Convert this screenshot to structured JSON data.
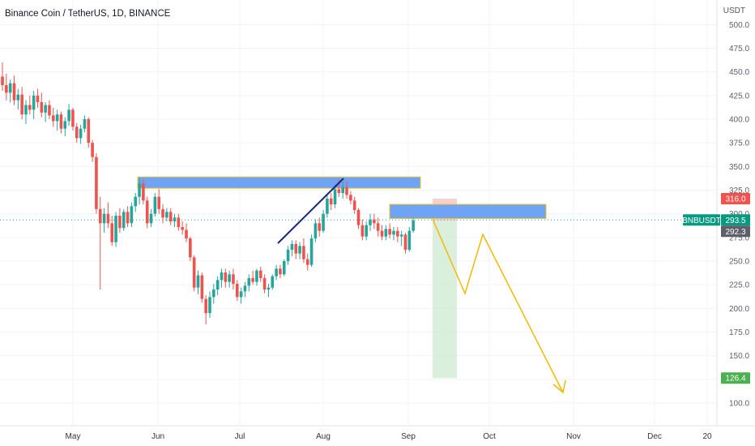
{
  "header": {
    "title": "Binance Coin / TetherUS, 1D, BINANCE",
    "currency": "USDT"
  },
  "colors": {
    "up": "#26a69a",
    "down": "#ef5350",
    "zone": "#6ea3f5",
    "zone_border": "#f5c518",
    "projection": "#f5b800",
    "trendline": "#1a237e",
    "target_fill": "#cfe9d2",
    "stop_fill": "#f8c8c8",
    "current_price_line": "#26a69a"
  },
  "chart_data": {
    "type": "candlestick",
    "symbol": "BNBUSDT",
    "interval": "1D",
    "ylim": [
      90,
      500
    ],
    "y_ticks": [
      "100.0",
      "125.0",
      "150.0",
      "175.0",
      "200.0",
      "225.0",
      "250.0",
      "275.0",
      "300.0",
      "325.0",
      "350.0",
      "375.0",
      "400.0",
      "425.0",
      "450.0",
      "475.0",
      "500.0"
    ],
    "x_ticks": [
      "May",
      "Jun",
      "Jul",
      "Aug",
      "Sep",
      "Oct",
      "Nov",
      "Dec",
      "20"
    ],
    "price_badges": {
      "symbol_label": "BNBUSDT",
      "last_price": "293.5",
      "stop_price": "316.0",
      "entry_price": "292.3",
      "target_price": "126.4"
    },
    "candles": [
      {
        "o": 445,
        "h": 460,
        "l": 430,
        "c": 436
      },
      {
        "o": 436,
        "h": 448,
        "l": 420,
        "c": 428
      },
      {
        "o": 428,
        "h": 442,
        "l": 418,
        "c": 438
      },
      {
        "o": 438,
        "h": 446,
        "l": 415,
        "c": 420
      },
      {
        "o": 420,
        "h": 432,
        "l": 410,
        "c": 426
      },
      {
        "o": 426,
        "h": 434,
        "l": 400,
        "c": 405
      },
      {
        "o": 405,
        "h": 420,
        "l": 395,
        "c": 415
      },
      {
        "o": 415,
        "h": 425,
        "l": 405,
        "c": 410
      },
      {
        "o": 410,
        "h": 430,
        "l": 400,
        "c": 425
      },
      {
        "o": 425,
        "h": 432,
        "l": 412,
        "c": 418
      },
      {
        "o": 418,
        "h": 428,
        "l": 402,
        "c": 407
      },
      {
        "o": 407,
        "h": 418,
        "l": 397,
        "c": 415
      },
      {
        "o": 415,
        "h": 420,
        "l": 400,
        "c": 404
      },
      {
        "o": 404,
        "h": 412,
        "l": 392,
        "c": 398
      },
      {
        "o": 398,
        "h": 410,
        "l": 388,
        "c": 405
      },
      {
        "o": 405,
        "h": 408,
        "l": 385,
        "c": 390
      },
      {
        "o": 390,
        "h": 402,
        "l": 382,
        "c": 398
      },
      {
        "o": 398,
        "h": 416,
        "l": 393,
        "c": 410
      },
      {
        "o": 410,
        "h": 412,
        "l": 388,
        "c": 392
      },
      {
        "o": 392,
        "h": 396,
        "l": 375,
        "c": 380
      },
      {
        "o": 380,
        "h": 394,
        "l": 374,
        "c": 390
      },
      {
        "o": 390,
        "h": 404,
        "l": 386,
        "c": 400
      },
      {
        "o": 400,
        "h": 402,
        "l": 370,
        "c": 375
      },
      {
        "o": 375,
        "h": 378,
        "l": 355,
        "c": 360
      },
      {
        "o": 360,
        "h": 364,
        "l": 300,
        "c": 305
      },
      {
        "o": 305,
        "h": 318,
        "l": 220,
        "c": 290
      },
      {
        "o": 290,
        "h": 306,
        "l": 280,
        "c": 300
      },
      {
        "o": 300,
        "h": 312,
        "l": 285,
        "c": 290
      },
      {
        "o": 290,
        "h": 298,
        "l": 266,
        "c": 270
      },
      {
        "o": 270,
        "h": 302,
        "l": 265,
        "c": 298
      },
      {
        "o": 298,
        "h": 306,
        "l": 280,
        "c": 285
      },
      {
        "o": 285,
        "h": 305,
        "l": 282,
        "c": 302
      },
      {
        "o": 302,
        "h": 308,
        "l": 286,
        "c": 290
      },
      {
        "o": 290,
        "h": 312,
        "l": 286,
        "c": 308
      },
      {
        "o": 308,
        "h": 322,
        "l": 302,
        "c": 318
      },
      {
        "o": 318,
        "h": 338,
        "l": 310,
        "c": 332
      },
      {
        "o": 332,
        "h": 336,
        "l": 310,
        "c": 314
      },
      {
        "o": 314,
        "h": 318,
        "l": 285,
        "c": 290
      },
      {
        "o": 290,
        "h": 305,
        "l": 286,
        "c": 300
      },
      {
        "o": 300,
        "h": 322,
        "l": 297,
        "c": 318
      },
      {
        "o": 318,
        "h": 326,
        "l": 300,
        "c": 305
      },
      {
        "o": 305,
        "h": 310,
        "l": 290,
        "c": 296
      },
      {
        "o": 296,
        "h": 306,
        "l": 292,
        "c": 302
      },
      {
        "o": 302,
        "h": 306,
        "l": 288,
        "c": 292
      },
      {
        "o": 292,
        "h": 300,
        "l": 286,
        "c": 296
      },
      {
        "o": 296,
        "h": 300,
        "l": 282,
        "c": 286
      },
      {
        "o": 286,
        "h": 292,
        "l": 278,
        "c": 283
      },
      {
        "o": 283,
        "h": 290,
        "l": 270,
        "c": 274
      },
      {
        "o": 274,
        "h": 276,
        "l": 250,
        "c": 254
      },
      {
        "o": 254,
        "h": 256,
        "l": 218,
        "c": 222
      },
      {
        "o": 222,
        "h": 240,
        "l": 215,
        "c": 235
      },
      {
        "o": 235,
        "h": 238,
        "l": 206,
        "c": 210
      },
      {
        "o": 210,
        "h": 214,
        "l": 183,
        "c": 195
      },
      {
        "o": 195,
        "h": 218,
        "l": 190,
        "c": 212
      },
      {
        "o": 212,
        "h": 226,
        "l": 205,
        "c": 220
      },
      {
        "o": 220,
        "h": 234,
        "l": 214,
        "c": 230
      },
      {
        "o": 230,
        "h": 242,
        "l": 222,
        "c": 238
      },
      {
        "o": 238,
        "h": 242,
        "l": 222,
        "c": 228
      },
      {
        "o": 228,
        "h": 240,
        "l": 222,
        "c": 236
      },
      {
        "o": 236,
        "h": 242,
        "l": 220,
        "c": 226
      },
      {
        "o": 226,
        "h": 230,
        "l": 208,
        "c": 212
      },
      {
        "o": 212,
        "h": 222,
        "l": 205,
        "c": 218
      },
      {
        "o": 218,
        "h": 228,
        "l": 212,
        "c": 224
      },
      {
        "o": 224,
        "h": 236,
        "l": 218,
        "c": 232
      },
      {
        "o": 232,
        "h": 240,
        "l": 225,
        "c": 228
      },
      {
        "o": 228,
        "h": 242,
        "l": 224,
        "c": 240
      },
      {
        "o": 240,
        "h": 244,
        "l": 228,
        "c": 232
      },
      {
        "o": 232,
        "h": 236,
        "l": 216,
        "c": 220
      },
      {
        "o": 220,
        "h": 226,
        "l": 212,
        "c": 222
      },
      {
        "o": 222,
        "h": 236,
        "l": 220,
        "c": 234
      },
      {
        "o": 234,
        "h": 246,
        "l": 230,
        "c": 242
      },
      {
        "o": 242,
        "h": 246,
        "l": 232,
        "c": 236
      },
      {
        "o": 236,
        "h": 252,
        "l": 234,
        "c": 250
      },
      {
        "o": 250,
        "h": 266,
        "l": 246,
        "c": 262
      },
      {
        "o": 262,
        "h": 272,
        "l": 255,
        "c": 268
      },
      {
        "o": 268,
        "h": 272,
        "l": 252,
        "c": 258
      },
      {
        "o": 258,
        "h": 270,
        "l": 252,
        "c": 266
      },
      {
        "o": 266,
        "h": 274,
        "l": 248,
        "c": 252
      },
      {
        "o": 252,
        "h": 258,
        "l": 240,
        "c": 246
      },
      {
        "o": 246,
        "h": 278,
        "l": 244,
        "c": 274
      },
      {
        "o": 274,
        "h": 294,
        "l": 270,
        "c": 290
      },
      {
        "o": 290,
        "h": 296,
        "l": 276,
        "c": 282
      },
      {
        "o": 282,
        "h": 304,
        "l": 280,
        "c": 300
      },
      {
        "o": 300,
        "h": 320,
        "l": 296,
        "c": 316
      },
      {
        "o": 316,
        "h": 322,
        "l": 304,
        "c": 310
      },
      {
        "o": 310,
        "h": 330,
        "l": 306,
        "c": 326
      },
      {
        "o": 326,
        "h": 336,
        "l": 318,
        "c": 322
      },
      {
        "o": 322,
        "h": 334,
        "l": 316,
        "c": 328
      },
      {
        "o": 328,
        "h": 334,
        "l": 316,
        "c": 320
      },
      {
        "o": 320,
        "h": 324,
        "l": 310,
        "c": 314
      },
      {
        "o": 314,
        "h": 318,
        "l": 300,
        "c": 304
      },
      {
        "o": 304,
        "h": 306,
        "l": 284,
        "c": 288
      },
      {
        "o": 288,
        "h": 294,
        "l": 272,
        "c": 276
      },
      {
        "o": 276,
        "h": 292,
        "l": 272,
        "c": 288
      },
      {
        "o": 288,
        "h": 300,
        "l": 282,
        "c": 294
      },
      {
        "o": 294,
        "h": 300,
        "l": 284,
        "c": 290
      },
      {
        "o": 290,
        "h": 296,
        "l": 276,
        "c": 282
      },
      {
        "o": 282,
        "h": 288,
        "l": 272,
        "c": 276
      },
      {
        "o": 276,
        "h": 288,
        "l": 272,
        "c": 284
      },
      {
        "o": 284,
        "h": 290,
        "l": 274,
        "c": 278
      },
      {
        "o": 278,
        "h": 286,
        "l": 272,
        "c": 282
      },
      {
        "o": 282,
        "h": 286,
        "l": 270,
        "c": 276
      },
      {
        "o": 276,
        "h": 282,
        "l": 266,
        "c": 278
      },
      {
        "o": 278,
        "h": 280,
        "l": 258,
        "c": 262
      },
      {
        "o": 262,
        "h": 286,
        "l": 260,
        "c": 282
      },
      {
        "o": 282,
        "h": 296,
        "l": 280,
        "c": 293
      }
    ],
    "annotations": {
      "resistance_zone": {
        "price_low": 327,
        "price_high": 339
      },
      "retest_zone": {
        "price_low": 295,
        "price_high": 310
      },
      "stop_zone": {
        "price_low": 293,
        "price_high": 316
      },
      "target_zone": {
        "price_low": 126.4,
        "price_high": 293
      }
    }
  }
}
